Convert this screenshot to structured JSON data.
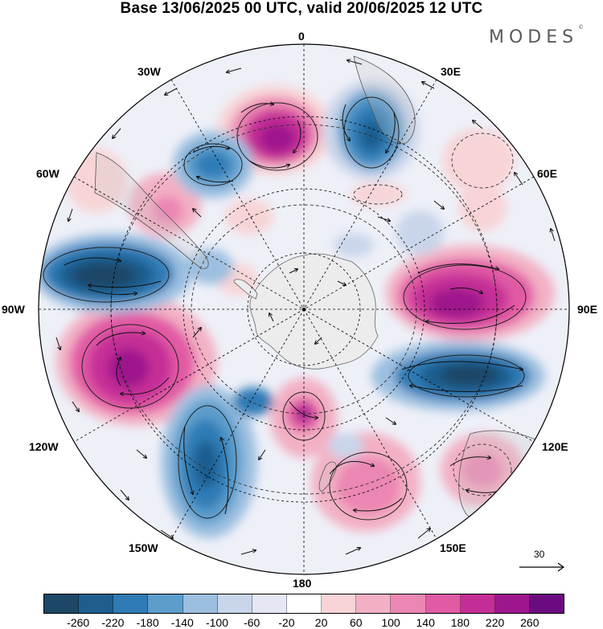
{
  "title": "Base 13/06/2025 00 UTC, valid 20/06/2025 12 UTC",
  "brand": "MODES",
  "brand_mark": "©",
  "longitude_labels": {
    "lon_0": "0",
    "lon_30e": "30E",
    "lon_60e": "60E",
    "lon_90e": "90E",
    "lon_120e": "120E",
    "lon_150e": "150E",
    "lon_180": "180",
    "lon_150w": "150W",
    "lon_120w": "120W",
    "lon_90w": "90W",
    "lon_60w": "60W",
    "lon_30w": "30W"
  },
  "wind_scale": {
    "label": "30",
    "icon": "arrow-right-icon"
  },
  "colorbar": {
    "colors": [
      "#1c4766",
      "#1f5d8f",
      "#2f7bb6",
      "#5c9dcc",
      "#9cbfe0",
      "#c9d5ea",
      "#e5e7f4",
      "#ffffff",
      "#f8d4d6",
      "#f3b0c4",
      "#ec86b2",
      "#e15aa4",
      "#c52d96",
      "#9e168d",
      "#6b0b80"
    ],
    "ticks": [
      "-260",
      "-220",
      "-180",
      "-140",
      "-100",
      "-60",
      "-20",
      "20",
      "60",
      "100",
      "140",
      "180",
      "220",
      "260"
    ]
  },
  "map": {
    "projection": "south-polar-stereographic",
    "antarctica_color": "#ececec",
    "land_outline_color": "#555555",
    "contour_color": "#222222",
    "grid_color": "#000000"
  }
}
